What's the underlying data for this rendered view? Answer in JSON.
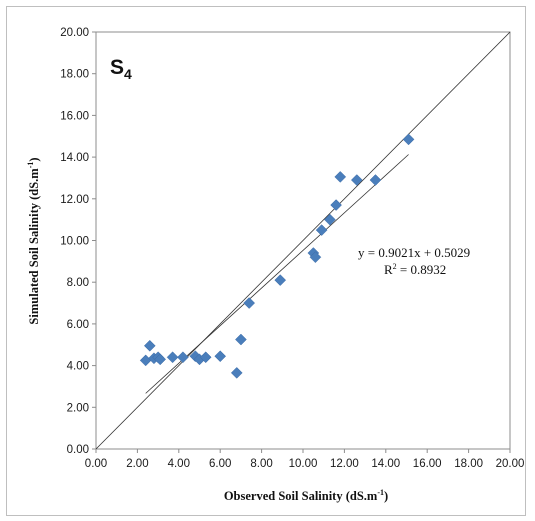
{
  "chart_data": {
    "type": "scatter",
    "panel_label": "S",
    "panel_label_sub": "4",
    "xlabel_main": "Observed Soil Salinity (dS.m",
    "xlabel_sup": "-1",
    "xlabel_end": ")",
    "ylabel_main": "Simulated Soil Salinity  (dS.m",
    "ylabel_sup": "-1",
    "ylabel_end": ")",
    "xlim": [
      0,
      20
    ],
    "ylim": [
      0,
      20
    ],
    "xticks": [
      "0.00",
      "2.00",
      "4.00",
      "6.00",
      "8.00",
      "10.00",
      "12.00",
      "14.00",
      "16.00",
      "18.00",
      "20.00"
    ],
    "yticks": [
      "0.00",
      "2.00",
      "4.00",
      "6.00",
      "8.00",
      "10.00",
      "12.00",
      "14.00",
      "16.00",
      "18.00",
      "20.00"
    ],
    "grid": false,
    "marker": "diamond",
    "marker_color": "#4a7ebb",
    "line_color": "#333333",
    "points": [
      {
        "x": 2.4,
        "y": 4.25
      },
      {
        "x": 2.6,
        "y": 4.95
      },
      {
        "x": 2.8,
        "y": 4.35
      },
      {
        "x": 3.0,
        "y": 4.4
      },
      {
        "x": 3.1,
        "y": 4.3
      },
      {
        "x": 3.7,
        "y": 4.4
      },
      {
        "x": 4.2,
        "y": 4.4
      },
      {
        "x": 4.8,
        "y": 4.45
      },
      {
        "x": 5.0,
        "y": 4.3
      },
      {
        "x": 5.3,
        "y": 4.4
      },
      {
        "x": 6.0,
        "y": 4.45
      },
      {
        "x": 6.8,
        "y": 3.65
      },
      {
        "x": 7.0,
        "y": 5.25
      },
      {
        "x": 7.4,
        "y": 7.0
      },
      {
        "x": 8.9,
        "y": 8.1
      },
      {
        "x": 10.5,
        "y": 9.4
      },
      {
        "x": 10.6,
        "y": 9.2
      },
      {
        "x": 10.9,
        "y": 10.5
      },
      {
        "x": 11.3,
        "y": 11.0
      },
      {
        "x": 11.6,
        "y": 11.7
      },
      {
        "x": 11.8,
        "y": 13.05
      },
      {
        "x": 12.6,
        "y": 12.9
      },
      {
        "x": 13.5,
        "y": 12.9
      },
      {
        "x": 15.1,
        "y": 14.85
      }
    ],
    "reference_line": {
      "from": [
        0,
        0
      ],
      "to": [
        20,
        20
      ]
    },
    "trendline": {
      "slope": 0.9021,
      "intercept": 0.5029,
      "x_range": [
        2.4,
        15.1
      ]
    },
    "equation": "y = 0.9021x + 0.5029",
    "r2_label": "R",
    "r2_sup": "2",
    "r2_value": " = 0.8932"
  }
}
